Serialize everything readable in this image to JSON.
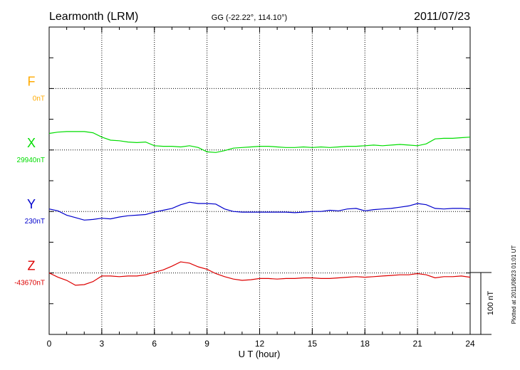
{
  "header": {
    "station": "Learmonth (LRM)",
    "coords": "GG (-22.22°, 114.10°)",
    "date": "2011/07/23"
  },
  "footer": {
    "plotted": "Plotted at 2011/08/23 01:01 UT"
  },
  "chart_data": {
    "type": "line",
    "xlabel": "U T (hour)",
    "xlim": [
      0,
      24
    ],
    "xticks": [
      "0",
      "3",
      "6",
      "9",
      "12",
      "15",
      "18",
      "21",
      "24"
    ],
    "ylim_nT": [
      -200,
      300
    ],
    "scale_bar": {
      "label": "100 nT",
      "value_nT": 100
    },
    "grid": true,
    "series": [
      {
        "name": "F",
        "baseline_label": "0nT",
        "color": "#ffaa00",
        "baseline_offset_nT": 200,
        "x": [],
        "y": []
      },
      {
        "name": "X",
        "baseline_label": "29940nT",
        "color": "#00dd00",
        "baseline_offset_nT": 100,
        "x": [
          0,
          0.5,
          1,
          1.5,
          2,
          2.5,
          3,
          3.5,
          4,
          4.5,
          5,
          5.5,
          6,
          6.5,
          7,
          7.5,
          8,
          8.5,
          9,
          9.5,
          10,
          10.5,
          11,
          11.5,
          12,
          12.5,
          13,
          13.5,
          14,
          14.5,
          15,
          15.5,
          16,
          16.5,
          17,
          17.5,
          18,
          18.5,
          19,
          19.5,
          20,
          20.5,
          21,
          21.5,
          22,
          22.5,
          23,
          23.5,
          24
        ],
        "y": [
          27,
          29,
          30,
          30,
          30,
          28,
          21,
          16,
          15,
          13,
          12,
          13,
          7,
          6,
          6,
          5,
          7,
          4,
          -3,
          -4,
          -1,
          3,
          4,
          5,
          6,
          6,
          5,
          4,
          4,
          5,
          4,
          5,
          4,
          5,
          6,
          6,
          7,
          8,
          7,
          8,
          9,
          8,
          7,
          10,
          18,
          19,
          19,
          20,
          21
        ]
      },
      {
        "name": "Y",
        "baseline_label": "230nT",
        "color": "#0000cc",
        "baseline_offset_nT": 0,
        "x": [
          0,
          0.5,
          1,
          1.5,
          2,
          2.5,
          3,
          3.5,
          4,
          4.5,
          5,
          5.5,
          6,
          6.5,
          7,
          7.5,
          8,
          8.5,
          9,
          9.5,
          10,
          10.5,
          11,
          11.5,
          12,
          12.5,
          13,
          13.5,
          14,
          14.5,
          15,
          15.5,
          16,
          16.5,
          17,
          17.5,
          18,
          18.5,
          19,
          19.5,
          20,
          20.5,
          21,
          21.5,
          22,
          22.5,
          23,
          23.5,
          24
        ],
        "y": [
          4,
          1,
          -6,
          -10,
          -14,
          -13,
          -11,
          -12,
          -9,
          -7,
          -6,
          -5,
          -1,
          2,
          5,
          11,
          15,
          13,
          13,
          12,
          4,
          0,
          -1,
          -1,
          -1,
          -1,
          -1,
          -1,
          -2,
          -1,
          0,
          0,
          2,
          1,
          4,
          5,
          1,
          3,
          4,
          5,
          7,
          9,
          13,
          11,
          5,
          4,
          5,
          5,
          4
        ]
      },
      {
        "name": "Z",
        "baseline_label": "-43670nT",
        "color": "#dd0000",
        "baseline_offset_nT": -100,
        "x": [
          0,
          0.5,
          1,
          1.5,
          2,
          2.5,
          3,
          3.5,
          4,
          4.5,
          5,
          5.5,
          6,
          6.5,
          7,
          7.5,
          8,
          8.5,
          9,
          9.5,
          10,
          10.5,
          11,
          11.5,
          12,
          12.5,
          13,
          13.5,
          14,
          14.5,
          15,
          15.5,
          16,
          16.5,
          17,
          17.5,
          18,
          18.5,
          19,
          19.5,
          20,
          20.5,
          21,
          21.5,
          22,
          22.5,
          23,
          23.5,
          24
        ],
        "y": [
          0,
          -7,
          -12,
          -20,
          -19,
          -14,
          -5,
          -5,
          -6,
          -5,
          -5,
          -3,
          1,
          5,
          11,
          18,
          16,
          10,
          6,
          -1,
          -6,
          -10,
          -12,
          -11,
          -9,
          -9,
          -10,
          -9,
          -9,
          -8,
          -8,
          -9,
          -9,
          -8,
          -7,
          -6,
          -7,
          -6,
          -5,
          -4,
          -3,
          -3,
          -1,
          -3,
          -8,
          -6,
          -6,
          -5,
          -7
        ]
      }
    ]
  }
}
